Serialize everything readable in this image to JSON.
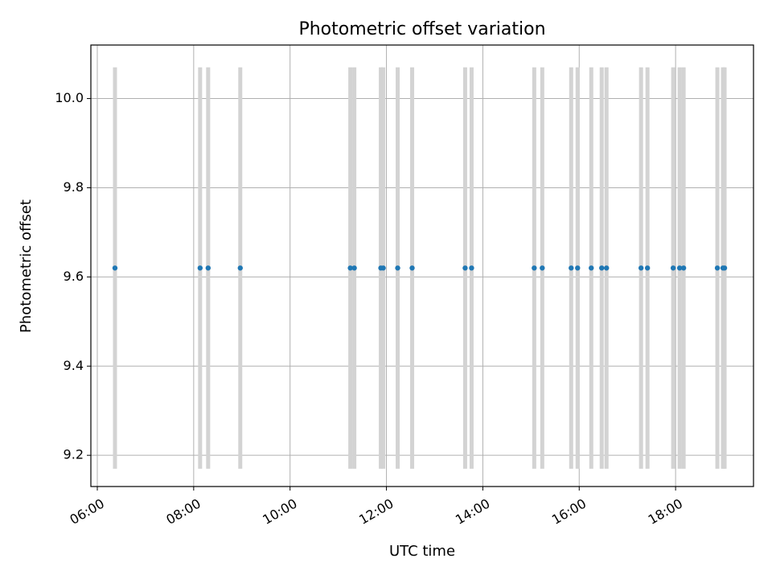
{
  "chart_data": {
    "type": "scatter",
    "title": "Photometric offset variation",
    "xlabel": "UTC time",
    "ylabel": "Photometric offset",
    "x_ticks": [
      "06:00",
      "08:00",
      "10:00",
      "12:00",
      "14:00",
      "16:00",
      "18:00"
    ],
    "y_ticks": [
      "9.2",
      "9.4",
      "9.6",
      "9.8",
      "10.0"
    ],
    "xlim": [
      "05:52",
      "19:37"
    ],
    "ylim": [
      9.13,
      10.12
    ],
    "grid": true,
    "colors": {
      "points": "#1f77b4",
      "error_bars": "#d3d3d3",
      "grid": "#b0b0b0"
    },
    "series": [
      {
        "x": [
          "06:22",
          "08:08",
          "08:18",
          "08:58",
          "11:15",
          "11:20",
          "11:53",
          "11:56",
          "12:14",
          "12:32",
          "13:38",
          "13:46",
          "15:04",
          "15:14",
          "15:50",
          "15:58",
          "16:15",
          "16:28",
          "16:34",
          "17:17",
          "17:25",
          "17:57",
          "18:05",
          "18:10",
          "18:52",
          "18:59",
          "19:01"
        ],
        "y": [
          9.62,
          9.62,
          9.62,
          9.62,
          9.62,
          9.62,
          9.62,
          9.62,
          9.62,
          9.62,
          9.62,
          9.62,
          9.62,
          9.62,
          9.62,
          9.62,
          9.62,
          9.62,
          9.62,
          9.62,
          9.62,
          9.62,
          9.62,
          9.62,
          9.62,
          9.62,
          9.62
        ],
        "yerr": 0.45
      }
    ]
  }
}
